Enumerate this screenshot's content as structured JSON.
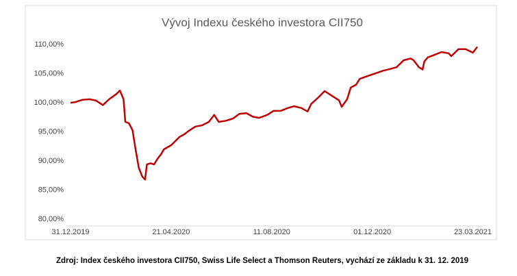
{
  "chart_data": {
    "type": "line",
    "title": "Vývoj Indexu českého investora CII750",
    "x": [
      "2019-12-31",
      "2020-01-05",
      "2020-01-13",
      "2020-01-21",
      "2020-01-28",
      "2020-02-05",
      "2020-02-12",
      "2020-02-20",
      "2020-02-24",
      "2020-02-28",
      "2020-03-01",
      "2020-03-05",
      "2020-03-09",
      "2020-03-12",
      "2020-03-16",
      "2020-03-20",
      "2020-03-23",
      "2020-03-25",
      "2020-03-29",
      "2020-04-02",
      "2020-04-06",
      "2020-04-10",
      "2020-04-13",
      "2020-04-21",
      "2020-04-25",
      "2020-04-30",
      "2020-05-06",
      "2020-05-10",
      "2020-05-18",
      "2020-05-25",
      "2020-06-02",
      "2020-06-08",
      "2020-06-13",
      "2020-06-21",
      "2020-06-29",
      "2020-07-06",
      "2020-07-14",
      "2020-07-21",
      "2020-07-28",
      "2020-08-06",
      "2020-08-13",
      "2020-08-21",
      "2020-08-29",
      "2020-09-05",
      "2020-09-13",
      "2020-09-20",
      "2020-09-24",
      "2020-10-02",
      "2020-10-09",
      "2020-10-17",
      "2020-10-25",
      "2020-10-28",
      "2020-11-03",
      "2020-11-07",
      "2020-11-13",
      "2020-11-17",
      "2020-11-24",
      "2020-12-02",
      "2020-12-13",
      "2020-12-21",
      "2020-12-28",
      "2021-01-05",
      "2021-01-13",
      "2021-01-16",
      "2021-01-22",
      "2021-01-26",
      "2021-01-28",
      "2021-02-01",
      "2021-02-08",
      "2021-02-16",
      "2021-02-24",
      "2021-02-27",
      "2021-03-07",
      "2021-03-15",
      "2021-03-23",
      "2021-03-28"
    ],
    "series": [
      {
        "name": "CII750",
        "color": "#c00000",
        "values": [
          100.0,
          100.1,
          100.5,
          100.6,
          100.4,
          99.6,
          100.6,
          101.5,
          102.1,
          100.6,
          96.7,
          96.5,
          95.3,
          92.4,
          88.8,
          87.3,
          86.8,
          89.4,
          89.6,
          89.4,
          90.4,
          91.2,
          92.0,
          92.7,
          93.3,
          94.1,
          94.6,
          95.1,
          95.9,
          96.1,
          96.7,
          97.9,
          96.7,
          96.9,
          97.3,
          98.1,
          98.2,
          97.6,
          97.4,
          97.9,
          98.6,
          98.6,
          99.1,
          99.4,
          99.1,
          98.5,
          99.8,
          100.9,
          102.0,
          101.2,
          100.4,
          99.3,
          100.6,
          102.6,
          103.1,
          104.1,
          104.5,
          104.9,
          105.5,
          105.8,
          106.1,
          107.3,
          107.6,
          107.3,
          106.1,
          105.7,
          107.1,
          107.8,
          108.2,
          108.7,
          108.5,
          108.0,
          109.2,
          109.2,
          108.6,
          109.6
        ]
      }
    ],
    "xlim": [
      "2019-12-31",
      "2021-03-31"
    ],
    "xticks": [
      {
        "value": "2019-12-31",
        "label": "31.12.2019"
      },
      {
        "value": "2020-04-21",
        "label": "21.04.2020"
      },
      {
        "value": "2020-08-11",
        "label": "11.08.2020"
      },
      {
        "value": "2020-12-01",
        "label": "01.12.2020"
      },
      {
        "value": "2021-03-23",
        "label": "23.03.2021"
      }
    ],
    "ylim": [
      80,
      110
    ],
    "yticks": [
      {
        "value": 80,
        "label": "80,00%"
      },
      {
        "value": 85,
        "label": "85,00%"
      },
      {
        "value": 90,
        "label": "90,00%"
      },
      {
        "value": 95,
        "label": "95,00%"
      },
      {
        "value": 100,
        "label": "100,00%"
      },
      {
        "value": 105,
        "label": "105,00%"
      },
      {
        "value": 110,
        "label": "110,00%"
      }
    ],
    "grid": false
  },
  "source": "Zdroj: Index českého investora CII750,  Swiss Life Select a Thomson Reuters, vychází ze základu k 31. 12. 2019"
}
